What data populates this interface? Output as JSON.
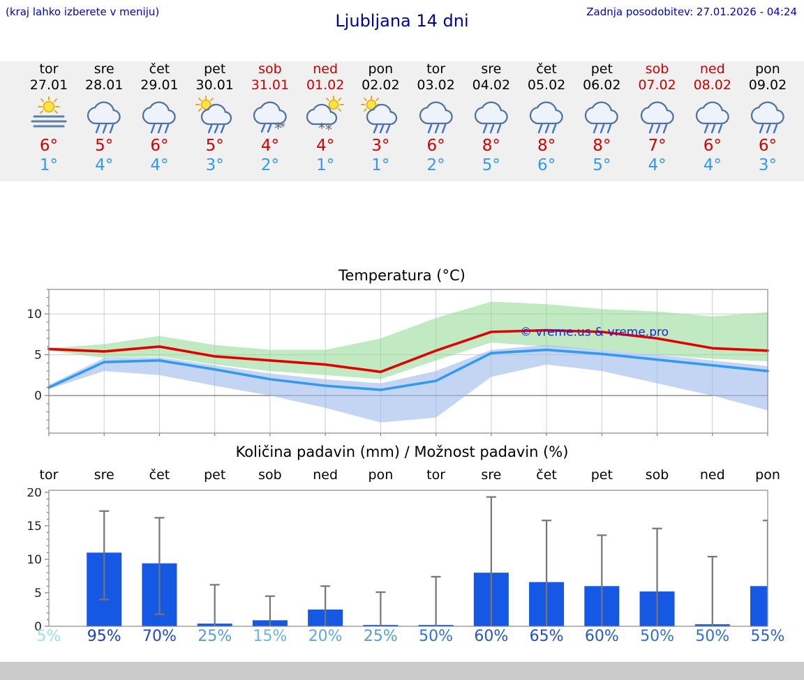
{
  "header": {
    "hint": "(kraj lahko izberete v meniju)",
    "title": "Ljubljana 14 dni",
    "updated": "Zadnja posodobitev: 27.01.2026 - 04:24"
  },
  "colors": {
    "hint_blue": "#0000cc",
    "title_navy": "#00009b",
    "weekend_red": "#cc0000",
    "high_temp_red": "#d40000",
    "low_temp_blue": "#3399ee",
    "bar_blue": "#1558e4",
    "watermark_blue": "#2222cc",
    "strip_background": "#f0f0f0"
  },
  "days": [
    {
      "name": "tor",
      "date": "27.01",
      "weekend": false,
      "icon": "sun-fog",
      "high": "6°",
      "low": "1°"
    },
    {
      "name": "sre",
      "date": "28.01",
      "weekend": false,
      "icon": "rain",
      "high": "5°",
      "low": "4°"
    },
    {
      "name": "čet",
      "date": "29.01",
      "weekend": false,
      "icon": "rain",
      "high": "6°",
      "low": "4°"
    },
    {
      "name": "pet",
      "date": "30.01",
      "weekend": false,
      "icon": "sun-rain",
      "high": "5°",
      "low": "3°"
    },
    {
      "name": "sob",
      "date": "31.01",
      "weekend": true,
      "icon": "rain-snow",
      "high": "4°",
      "low": "2°"
    },
    {
      "name": "ned",
      "date": "01.02",
      "weekend": true,
      "icon": "sun-snow",
      "high": "4°",
      "low": "1°"
    },
    {
      "name": "pon",
      "date": "02.02",
      "weekend": false,
      "icon": "sun-rain",
      "high": "3°",
      "low": "1°"
    },
    {
      "name": "tor",
      "date": "03.02",
      "weekend": false,
      "icon": "rain",
      "high": "6°",
      "low": "2°"
    },
    {
      "name": "sre",
      "date": "04.02",
      "weekend": false,
      "icon": "rain",
      "high": "8°",
      "low": "5°"
    },
    {
      "name": "čet",
      "date": "05.02",
      "weekend": false,
      "icon": "rain",
      "high": "8°",
      "low": "6°"
    },
    {
      "name": "pet",
      "date": "06.02",
      "weekend": false,
      "icon": "rain",
      "high": "8°",
      "low": "5°"
    },
    {
      "name": "sob",
      "date": "07.02",
      "weekend": true,
      "icon": "rain",
      "high": "7°",
      "low": "4°"
    },
    {
      "name": "ned",
      "date": "08.02",
      "weekend": true,
      "icon": "rain",
      "high": "6°",
      "low": "4°"
    },
    {
      "name": "pon",
      "date": "09.02",
      "weekend": false,
      "icon": "rain",
      "high": "6°",
      "low": "3°"
    }
  ],
  "chart_data": [
    {
      "type": "line",
      "title": "Temperatura (°C)",
      "categories": [
        "tor",
        "sre",
        "čet",
        "pet",
        "sob",
        "ned",
        "pon",
        "tor",
        "sre",
        "čet",
        "pet",
        "sob",
        "ned",
        "pon"
      ],
      "ylim": [
        -4.6,
        13
      ],
      "yticks": [
        0,
        5,
        10
      ],
      "grid": true,
      "series": [
        {
          "name": "max-temperature",
          "color": "#e10000",
          "values": [
            5.7,
            5.4,
            6.0,
            4.8,
            4.3,
            3.8,
            2.9,
            5.5,
            7.8,
            8.0,
            7.8,
            7.0,
            5.8,
            5.5
          ]
        },
        {
          "name": "min-temperature",
          "color": "#3399ee",
          "values": [
            1.0,
            4.1,
            4.3,
            3.2,
            2.0,
            1.2,
            0.7,
            1.8,
            5.2,
            5.6,
            5.1,
            4.4,
            3.7,
            3.0
          ]
        }
      ],
      "bands": [
        {
          "name": "max-temperature-range",
          "color": "#8fd88f",
          "opacity": 0.55,
          "upper": [
            5.8,
            6.3,
            7.3,
            6.2,
            5.6,
            5.6,
            7.0,
            9.5,
            11.5,
            11.2,
            10.6,
            10.3,
            9.7,
            10.2
          ],
          "lower": [
            5.5,
            4.6,
            4.8,
            3.8,
            3.0,
            2.5,
            2.0,
            4.3,
            6.5,
            6.0,
            5.6,
            5.0,
            4.5,
            4.2
          ]
        },
        {
          "name": "min-temperature-range",
          "color": "#9db9ec",
          "opacity": 0.6,
          "upper": [
            1.3,
            4.6,
            4.7,
            3.7,
            2.7,
            2.0,
            1.5,
            3.0,
            5.6,
            6.2,
            5.6,
            5.0,
            4.3,
            3.6
          ],
          "lower": [
            0.8,
            3.0,
            2.5,
            1.2,
            0.0,
            -1.5,
            -3.3,
            -2.7,
            2.3,
            3.8,
            3.0,
            1.5,
            0.0,
            -1.8
          ]
        }
      ],
      "watermark": "© vreme.us & vreme.pro"
    },
    {
      "type": "bar",
      "title": "Količina padavin (mm) / Možnost padavin (%)",
      "categories": [
        "tor",
        "sre",
        "čet",
        "pet",
        "sob",
        "ned",
        "pon",
        "tor",
        "sre",
        "čet",
        "pet",
        "sob",
        "ned",
        "pon"
      ],
      "ylim": [
        0,
        20.3
      ],
      "yticks": [
        0,
        5,
        10,
        15,
        20
      ],
      "values": [
        0.05,
        11,
        9.4,
        0.4,
        0.9,
        2.5,
        0.2,
        0.2,
        8,
        6.6,
        6,
        5.2,
        0.3,
        6.0
      ],
      "error_low": [
        0,
        4.0,
        1.8,
        0,
        0,
        0,
        0,
        0,
        0,
        0,
        0,
        0,
        0,
        0
      ],
      "error_high": [
        0,
        17.2,
        16.2,
        6.2,
        4.5,
        6.0,
        5.1,
        7.4,
        19.3,
        15.8,
        13.6,
        14.6,
        10.4,
        15.8
      ],
      "bar_color": "#1558e4",
      "probabilities": [
        {
          "label": "5%",
          "color": "#9adfe3"
        },
        {
          "label": "95%",
          "color": "#1b3fd0"
        },
        {
          "label": "70%",
          "color": "#1b49d0"
        },
        {
          "label": "25%",
          "color": "#549bdd"
        },
        {
          "label": "15%",
          "color": "#6db3e4"
        },
        {
          "label": "20%",
          "color": "#5fa7e0"
        },
        {
          "label": "25%",
          "color": "#549bdd"
        },
        {
          "label": "50%",
          "color": "#2f72d4"
        },
        {
          "label": "60%",
          "color": "#2257cd"
        },
        {
          "label": "65%",
          "color": "#1e4ecf"
        },
        {
          "label": "60%",
          "color": "#2257cd"
        },
        {
          "label": "50%",
          "color": "#2f72d4"
        },
        {
          "label": "50%",
          "color": "#2f72d4"
        },
        {
          "label": "55%",
          "color": "#2a63d1"
        }
      ]
    }
  ]
}
